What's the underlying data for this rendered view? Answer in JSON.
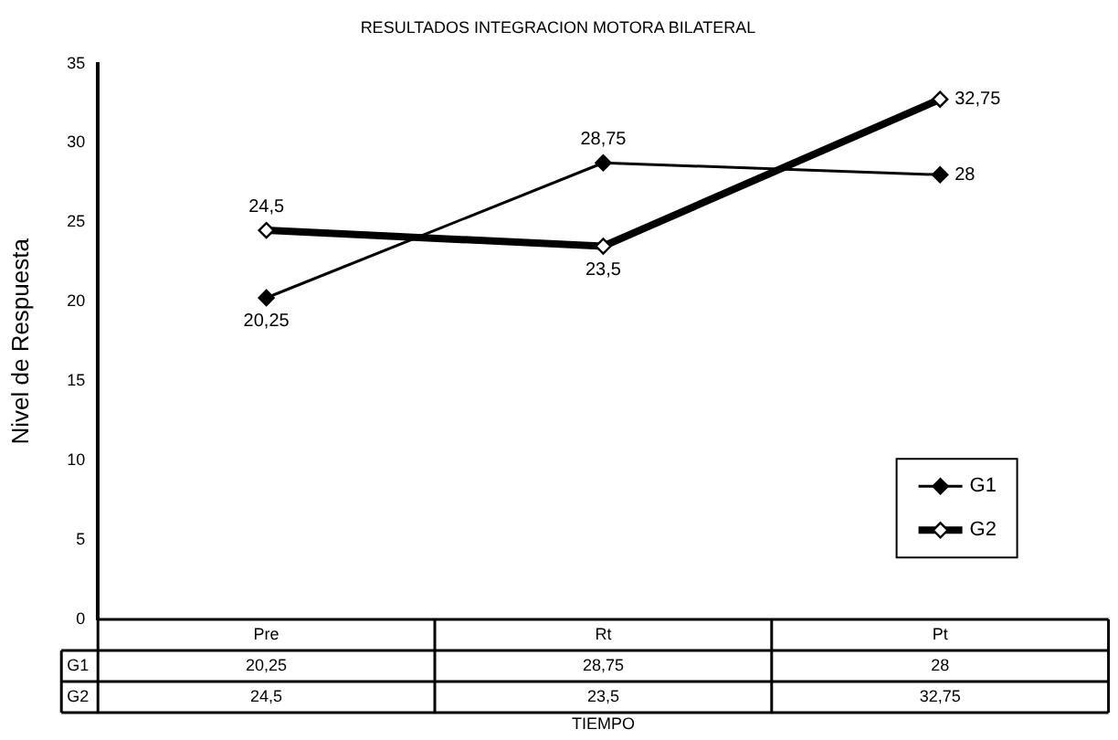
{
  "chart_data": {
    "type": "line",
    "title": "RESULTADOS INTEGRACION MOTORA BILATERAL",
    "xlabel": "TIEMPO",
    "ylabel": "Nivel de Respuesta",
    "categories": [
      "Pre",
      "Rt",
      "Pt"
    ],
    "series": [
      {
        "name": "G1",
        "color": "#000000",
        "values": [
          20.25,
          28.75,
          28
        ],
        "value_labels": [
          "20,25",
          "28,75",
          "28"
        ]
      },
      {
        "name": "G2",
        "color": "#000000",
        "values": [
          24.5,
          23.5,
          32.75
        ],
        "value_labels": [
          "24,5",
          "23,5",
          "32,75"
        ]
      }
    ],
    "ylim": [
      0,
      35
    ],
    "yticks": [
      0,
      5,
      10,
      15,
      20,
      25,
      30,
      35
    ],
    "grid": false,
    "legend": "right",
    "marker": "diamond",
    "line_style": "solid"
  }
}
